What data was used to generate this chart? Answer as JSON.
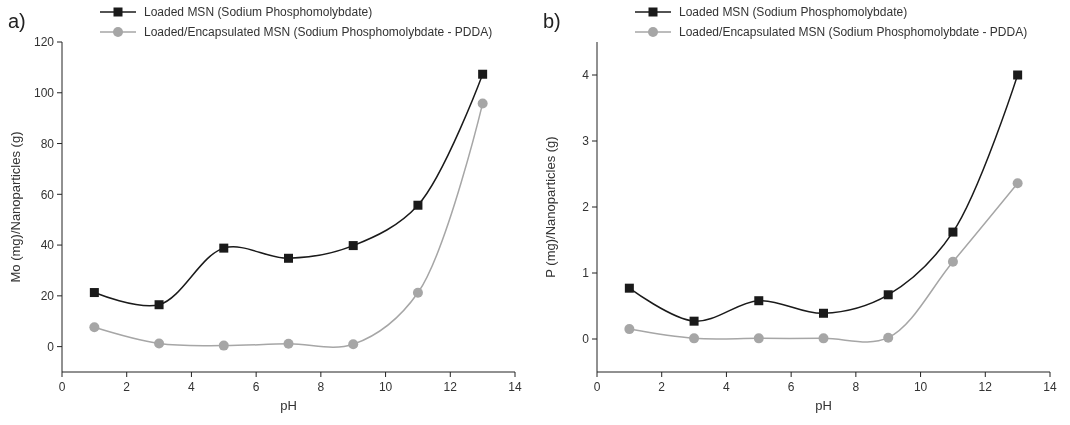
{
  "chart_data": [
    {
      "type": "line",
      "title": "a)",
      "xlabel": "pH",
      "ylabel": "Mo (mg)/Nanoparticles (g)",
      "x": [
        1,
        3,
        5,
        7,
        9,
        11,
        13
      ],
      "xlim": [
        0,
        14
      ],
      "xticks": [
        0,
        2,
        4,
        6,
        8,
        10,
        12,
        14
      ],
      "ylim": [
        -10,
        120
      ],
      "yticks": [
        0,
        20,
        40,
        60,
        80,
        100,
        120
      ],
      "legend": "top",
      "grid": false,
      "series": [
        {
          "name": "Loaded MSN (Sodium Phosphomolybdate)",
          "color": "#1a1a1a",
          "marker": "square",
          "values": [
            21.3,
            16.5,
            38.8,
            34.8,
            39.8,
            55.7,
            107.3
          ]
        },
        {
          "name": "Loaded/Encapsulated MSN (Sodium Phosphomolybdate - PDDA)",
          "color": "#a6a6a6",
          "marker": "circle",
          "values": [
            7.6,
            1.2,
            0.4,
            1.1,
            0.9,
            21.2,
            95.8
          ]
        }
      ]
    },
    {
      "type": "line",
      "title": "b)",
      "xlabel": "pH",
      "ylabel": "P (mg)/Nanoparticles (g)",
      "x": [
        1,
        3,
        5,
        7,
        9,
        11,
        13
      ],
      "xlim": [
        0,
        14
      ],
      "xticks": [
        0,
        2,
        4,
        6,
        8,
        10,
        12,
        14
      ],
      "ylim": [
        -0.5,
        4.5
      ],
      "yticks": [
        0,
        1,
        2,
        3,
        4
      ],
      "legend": "top",
      "grid": false,
      "series": [
        {
          "name": "Loaded MSN (Sodium Phosphomolybdate)",
          "color": "#1a1a1a",
          "marker": "square",
          "values": [
            0.77,
            0.27,
            0.58,
            0.39,
            0.67,
            1.62,
            4.0
          ]
        },
        {
          "name": "Loaded/Encapsulated MSN (Sodium Phosphomolybdate - PDDA)",
          "color": "#a6a6a6",
          "marker": "circle",
          "values": [
            0.15,
            0.01,
            0.01,
            0.01,
            0.02,
            1.17,
            2.36
          ]
        }
      ]
    }
  ]
}
